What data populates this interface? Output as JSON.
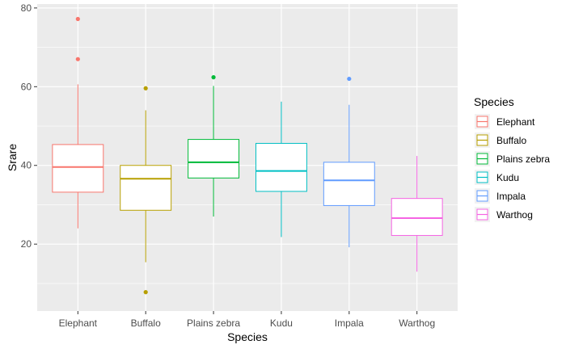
{
  "chart_data": {
    "type": "boxplot",
    "xlabel": "Species",
    "ylabel": "Srare",
    "ylim": [
      3,
      81
    ],
    "yticks": [
      20,
      40,
      60,
      80
    ],
    "grid": true,
    "legend": {
      "title": "Species",
      "position": "right"
    },
    "categories": [
      "Elephant",
      "Buffalo",
      "Plains zebra",
      "Kudu",
      "Impala",
      "Warthog"
    ],
    "colors": [
      "#F8766D",
      "#B79F00",
      "#00BA38",
      "#00BFC4",
      "#619CFF",
      "#F564E3"
    ],
    "boxes": [
      {
        "name": "Elephant",
        "whisker_low": 24,
        "q1": 33.2,
        "median": 39.6,
        "q3": 45.3,
        "whisker_high": 60.6,
        "outliers": [
          67.0,
          77.2
        ]
      },
      {
        "name": "Buffalo",
        "whisker_low": 15.4,
        "q1": 28.6,
        "median": 36.6,
        "q3": 40.0,
        "whisker_high": 54.0,
        "outliers": [
          59.6,
          7.8
        ]
      },
      {
        "name": "Plains zebra",
        "whisker_low": 27.0,
        "q1": 36.8,
        "median": 40.8,
        "q3": 46.6,
        "whisker_high": 60.2,
        "outliers": [
          62.4
        ]
      },
      {
        "name": "Kudu",
        "whisker_low": 21.8,
        "q1": 33.4,
        "median": 38.6,
        "q3": 45.6,
        "whisker_high": 56.2,
        "outliers": []
      },
      {
        "name": "Impala",
        "whisker_low": 19.2,
        "q1": 29.8,
        "median": 36.2,
        "q3": 40.8,
        "whisker_high": 55.4,
        "outliers": [
          62.0
        ]
      },
      {
        "name": "Warthog",
        "whisker_low": 13.0,
        "q1": 22.2,
        "median": 26.6,
        "q3": 31.6,
        "whisker_high": 42.4,
        "outliers": []
      }
    ]
  }
}
